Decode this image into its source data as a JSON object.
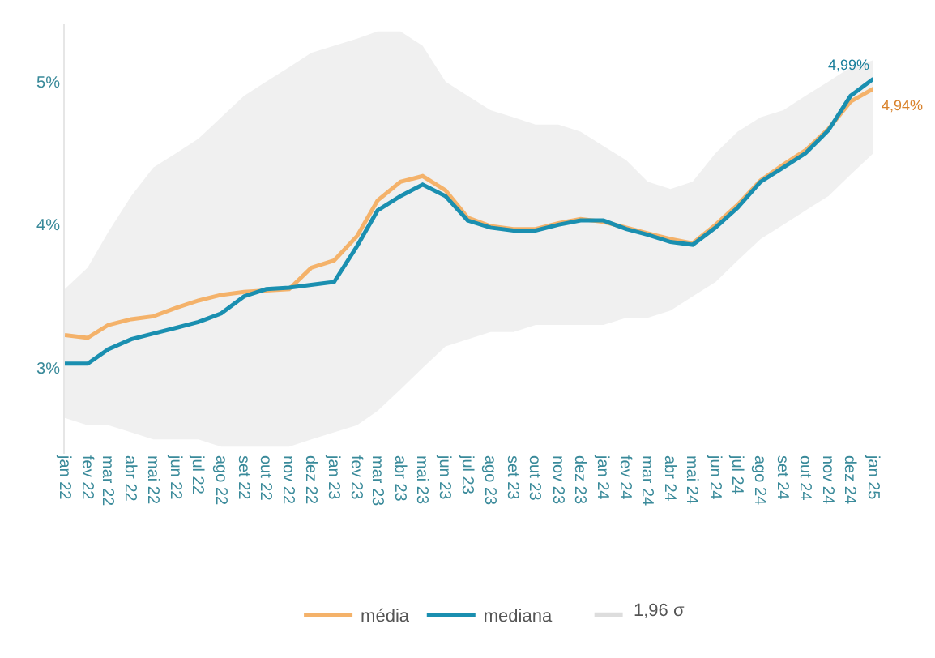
{
  "chart_data": {
    "type": "line",
    "x": [
      "2022-01-01",
      "2022-02-01",
      "2022-03-01",
      "2022-04-01",
      "2022-05-01",
      "2022-06-01",
      "2022-07-01",
      "2022-08-01",
      "2022-09-01",
      "2022-10-01",
      "2022-11-01",
      "2022-12-01",
      "2023-01-01",
      "2023-02-01",
      "2023-03-01",
      "2023-04-01",
      "2023-05-01",
      "2023-06-01",
      "2023-07-01",
      "2023-08-01",
      "2023-09-01",
      "2023-10-01",
      "2023-11-01",
      "2023-12-01",
      "2024-01-01",
      "2024-02-01",
      "2024-03-01",
      "2024-04-01",
      "2024-05-01",
      "2024-06-01",
      "2024-07-01",
      "2024-08-01",
      "2024-09-01",
      "2024-10-01",
      "2024-11-01",
      "2024-12-01",
      "2025-01-01"
    ],
    "series": [
      {
        "name": "média",
        "color": "#f4b26a",
        "lower": [
          2.65,
          2.6,
          2.6,
          2.55,
          2.5,
          2.5,
          2.5,
          2.45,
          2.45,
          2.45,
          2.45,
          2.5,
          2.55,
          2.6,
          2.7,
          2.85,
          3.0,
          3.15,
          3.2,
          3.25,
          3.25,
          3.3,
          3.3,
          3.3,
          3.3,
          3.35,
          3.35,
          3.4,
          3.5,
          3.6,
          3.75,
          3.9,
          4.0,
          4.1,
          4.2,
          4.35,
          4.5
        ],
        "upper": [
          3.55,
          3.7,
          3.95,
          4.2,
          4.4,
          4.5,
          4.6,
          4.75,
          4.9,
          5.0,
          5.1,
          5.2,
          5.25,
          5.3,
          5.35,
          5.35,
          5.25,
          5.0,
          4.9,
          4.8,
          4.75,
          4.7,
          4.7,
          4.65,
          4.55,
          4.45,
          4.3,
          4.25,
          4.3,
          4.5,
          4.65,
          4.75,
          4.8,
          4.9,
          5.0,
          5.1,
          5.15
        ],
        "values": [
          3.23,
          3.21,
          3.3,
          3.34,
          3.36,
          3.42,
          3.47,
          3.51,
          3.53,
          3.54,
          3.55,
          3.7,
          3.75,
          3.92,
          4.17,
          4.3,
          4.34,
          4.24,
          4.05,
          3.99,
          3.97,
          3.97,
          4.01,
          4.04,
          4.02,
          3.98,
          3.94,
          3.9,
          3.87,
          4.0,
          4.14,
          4.31,
          4.42,
          4.52,
          4.67,
          4.86,
          4.95
        ]
      },
      {
        "name": "mediana",
        "color": "#1a8fb0",
        "values": [
          3.03,
          3.03,
          3.13,
          3.2,
          3.24,
          3.28,
          3.32,
          3.38,
          3.5,
          3.55,
          3.56,
          3.58,
          3.6,
          3.85,
          4.1,
          4.2,
          4.28,
          4.2,
          4.03,
          3.98,
          3.96,
          3.96,
          4.0,
          4.03,
          4.03,
          3.97,
          3.93,
          3.88,
          3.86,
          3.98,
          4.12,
          4.3,
          4.4,
          4.5,
          4.66,
          4.9,
          5.02
        ]
      }
    ],
    "xlim": [
      "2022-01-01",
      "2025-01-01"
    ],
    "xticks": [
      {
        "value": "2022-01-01",
        "label": "jan 22"
      },
      {
        "value": "2022-02-01",
        "label": "fev 22"
      },
      {
        "value": "2022-03-01",
        "label": "mar 22"
      },
      {
        "value": "2022-04-01",
        "label": "abr 22"
      },
      {
        "value": "2022-05-01",
        "label": "mai 22"
      },
      {
        "value": "2022-06-01",
        "label": "jun 22"
      },
      {
        "value": "2022-07-01",
        "label": "jul 22"
      },
      {
        "value": "2022-08-01",
        "label": "ago 22"
      },
      {
        "value": "2022-09-01",
        "label": "set 22"
      },
      {
        "value": "2022-10-01",
        "label": "out 22"
      },
      {
        "value": "2022-11-01",
        "label": "nov 22"
      },
      {
        "value": "2022-12-01",
        "label": "dez 22"
      },
      {
        "value": "2023-01-01",
        "label": "jan 23"
      },
      {
        "value": "2023-02-01",
        "label": "fev 23"
      },
      {
        "value": "2023-03-01",
        "label": "mar 23"
      },
      {
        "value": "2023-04-01",
        "label": "abr 23"
      },
      {
        "value": "2023-05-01",
        "label": "mai 23"
      },
      {
        "value": "2023-06-01",
        "label": "jun 23"
      },
      {
        "value": "2023-07-01",
        "label": "jul 23"
      },
      {
        "value": "2023-08-01",
        "label": "ago 23"
      },
      {
        "value": "2023-09-01",
        "label": "set 23"
      },
      {
        "value": "2023-10-01",
        "label": "out 23"
      },
      {
        "value": "2023-11-01",
        "label": "nov 23"
      },
      {
        "value": "2023-12-01",
        "label": "dez 23"
      },
      {
        "value": "2024-01-01",
        "label": "jan 24"
      },
      {
        "value": "2024-02-01",
        "label": "fev 24"
      },
      {
        "value": "2024-03-01",
        "label": "mar 24"
      },
      {
        "value": "2024-04-01",
        "label": "abr 24"
      },
      {
        "value": "2024-05-01",
        "label": "mai 24"
      },
      {
        "value": "2024-06-01",
        "label": "jun 24"
      },
      {
        "value": "2024-07-01",
        "label": "jul 24"
      },
      {
        "value": "2024-08-01",
        "label": "ago 24"
      },
      {
        "value": "2024-09-01",
        "label": "set 24"
      },
      {
        "value": "2024-10-01",
        "label": "out 24"
      },
      {
        "value": "2024-11-01",
        "label": "nov 24"
      },
      {
        "value": "2024-12-01",
        "label": "dez 24"
      },
      {
        "value": "2025-01-01",
        "label": "jan 25"
      }
    ],
    "ylim": [
      2.4,
      5.4
    ],
    "yticks": [
      {
        "value": 3,
        "label": "3%"
      },
      {
        "value": 4,
        "label": "4%"
      },
      {
        "value": 5,
        "label": "5%"
      }
    ],
    "annotations": [
      {
        "text": "4,99%",
        "x": "2025-01-01",
        "y": 5.02
      },
      {
        "text": "4,94%",
        "x": "2025-01-01",
        "y": 4.95
      },
      "1,96 σ"
    ],
    "legend": "bottom",
    "marker": "none",
    "line_style": "solid"
  }
}
